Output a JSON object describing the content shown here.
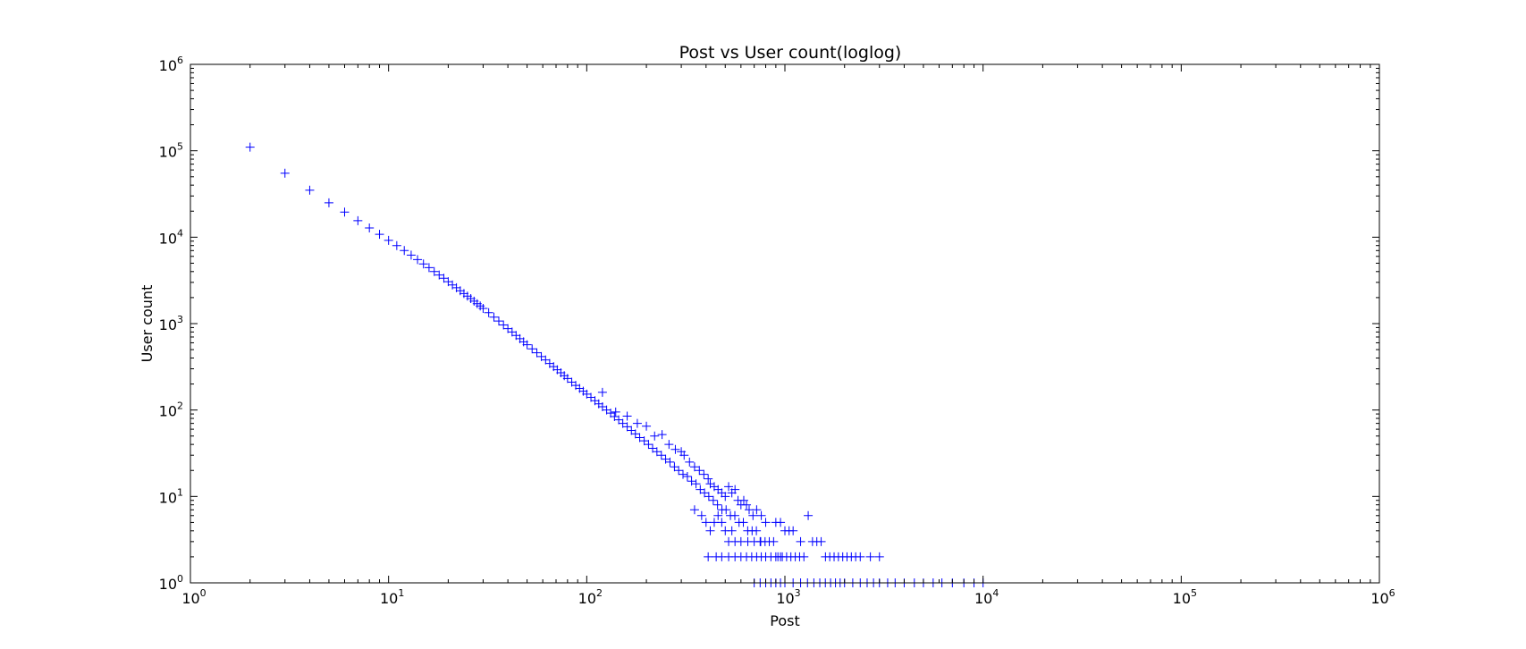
{
  "chart_data": {
    "type": "scatter",
    "title": "Post vs User count(loglog)",
    "xlabel": "Post",
    "ylabel": "User count",
    "xscale": "log",
    "yscale": "log",
    "xlim": [
      1,
      1000000
    ],
    "ylim": [
      1,
      1000000
    ],
    "grid": false,
    "marker": "+",
    "color": "#0000ff",
    "x_ticks": [
      {
        "base": "10",
        "exp": "0"
      },
      {
        "base": "10",
        "exp": "1"
      },
      {
        "base": "10",
        "exp": "2"
      },
      {
        "base": "10",
        "exp": "3"
      },
      {
        "base": "10",
        "exp": "4"
      },
      {
        "base": "10",
        "exp": "5"
      },
      {
        "base": "10",
        "exp": "6"
      }
    ],
    "y_ticks": [
      {
        "base": "10",
        "exp": "0"
      },
      {
        "base": "10",
        "exp": "1"
      },
      {
        "base": "10",
        "exp": "2"
      },
      {
        "base": "10",
        "exp": "3"
      },
      {
        "base": "10",
        "exp": "4"
      },
      {
        "base": "10",
        "exp": "5"
      },
      {
        "base": "10",
        "exp": "6"
      }
    ],
    "series": [
      {
        "points": [
          [
            2,
            110000
          ],
          [
            3,
            55000
          ],
          [
            4,
            35000
          ],
          [
            5,
            25000
          ],
          [
            6,
            19500
          ],
          [
            7,
            15500
          ],
          [
            8,
            12800
          ],
          [
            9,
            10800
          ],
          [
            10,
            9200
          ],
          [
            11,
            8000
          ],
          [
            12,
            7000
          ],
          [
            13,
            6200
          ],
          [
            14,
            5500
          ],
          [
            15,
            4900
          ],
          [
            16,
            4450
          ],
          [
            17,
            4000
          ],
          [
            18,
            3650
          ],
          [
            19,
            3350
          ],
          [
            20,
            3050
          ],
          [
            21,
            2800
          ],
          [
            22,
            2600
          ],
          [
            23,
            2400
          ],
          [
            24,
            2230
          ],
          [
            25,
            2080
          ],
          [
            26,
            1950
          ],
          [
            27,
            1820
          ],
          [
            28,
            1700
          ],
          [
            29,
            1600
          ],
          [
            30,
            1500
          ],
          [
            32,
            1340
          ],
          [
            34,
            1190
          ],
          [
            36,
            1070
          ],
          [
            38,
            965
          ],
          [
            40,
            875
          ],
          [
            42,
            800
          ],
          [
            44,
            730
          ],
          [
            46,
            670
          ],
          [
            48,
            615
          ],
          [
            50,
            570
          ],
          [
            53,
            510
          ],
          [
            56,
            460
          ],
          [
            59,
            415
          ],
          [
            62,
            380
          ],
          [
            65,
            345
          ],
          [
            68,
            318
          ],
          [
            71,
            292
          ],
          [
            74,
            270
          ],
          [
            77,
            250
          ],
          [
            80,
            232
          ],
          [
            84,
            210
          ],
          [
            88,
            193
          ],
          [
            92,
            178
          ],
          [
            96,
            165
          ],
          [
            100,
            153
          ],
          [
            105,
            140
          ],
          [
            110,
            128
          ],
          [
            115,
            118
          ],
          [
            120,
            109
          ],
          [
            126,
            100
          ],
          [
            132,
            92
          ],
          [
            138,
            84
          ],
          [
            145,
            77
          ],
          [
            152,
            70
          ],
          [
            160,
            64
          ],
          [
            168,
            58
          ],
          [
            176,
            53
          ],
          [
            185,
            48
          ],
          [
            195,
            44
          ],
          [
            205,
            40
          ],
          [
            215,
            36
          ],
          [
            226,
            33
          ],
          [
            238,
            30
          ],
          [
            250,
            27
          ],
          [
            263,
            25
          ],
          [
            277,
            22
          ],
          [
            291,
            20
          ],
          [
            306,
            18
          ],
          [
            322,
            17
          ],
          [
            338,
            15
          ],
          [
            356,
            14
          ],
          [
            374,
            12
          ],
          [
            393,
            11
          ],
          [
            413,
            10
          ],
          [
            435,
            9
          ],
          [
            457,
            8
          ],
          [
            481,
            7
          ],
          [
            505,
            7
          ],
          [
            531,
            6
          ],
          [
            559,
            6
          ],
          [
            587,
            5
          ],
          [
            617,
            5
          ],
          [
            649,
            4
          ],
          [
            683,
            4
          ],
          [
            718,
            4
          ],
          [
            755,
            3
          ],
          [
            794,
            3
          ],
          [
            834,
            3
          ],
          [
            877,
            3
          ],
          [
            922,
            2
          ],
          [
            970,
            2
          ],
          [
            1020,
            2
          ],
          [
            1072,
            2
          ],
          [
            1128,
            2
          ],
          [
            1186,
            2
          ],
          [
            1247,
            2
          ],
          [
            1311,
            6
          ],
          [
            1378,
            3
          ],
          [
            1449,
            3
          ],
          [
            1524,
            3
          ],
          [
            1602,
            2
          ],
          [
            1684,
            2
          ],
          [
            1771,
            2
          ],
          [
            1862,
            2
          ],
          [
            1958,
            2
          ],
          [
            2058,
            2
          ],
          [
            2164,
            2
          ],
          [
            2276,
            2
          ],
          [
            2400,
            2
          ],
          [
            2700,
            2
          ],
          [
            3000,
            2
          ],
          [
            120,
            160
          ],
          [
            140,
            95
          ],
          [
            160,
            85
          ],
          [
            180,
            70
          ],
          [
            200,
            65
          ],
          [
            220,
            50
          ],
          [
            240,
            52
          ],
          [
            260,
            40
          ],
          [
            280,
            35
          ],
          [
            300,
            33
          ],
          [
            310,
            30
          ],
          [
            330,
            25
          ],
          [
            350,
            22
          ],
          [
            370,
            20
          ],
          [
            390,
            18
          ],
          [
            410,
            16
          ],
          [
            420,
            14
          ],
          [
            440,
            13
          ],
          [
            460,
            12
          ],
          [
            480,
            11
          ],
          [
            500,
            10
          ],
          [
            520,
            13
          ],
          [
            540,
            11
          ],
          [
            560,
            12
          ],
          [
            580,
            9
          ],
          [
            600,
            8
          ],
          [
            620,
            9
          ],
          [
            640,
            8
          ],
          [
            660,
            7
          ],
          [
            690,
            6
          ],
          [
            720,
            7
          ],
          [
            760,
            6
          ],
          [
            800,
            5
          ],
          [
            900,
            5
          ],
          [
            950,
            5
          ],
          [
            1000,
            4
          ],
          [
            1050,
            4
          ],
          [
            1100,
            4
          ],
          [
            1200,
            3
          ],
          [
            350,
            7
          ],
          [
            380,
            6
          ],
          [
            400,
            5
          ],
          [
            420,
            4
          ],
          [
            440,
            5
          ],
          [
            460,
            6
          ],
          [
            480,
            5
          ],
          [
            500,
            4
          ],
          [
            520,
            3
          ],
          [
            540,
            4
          ],
          [
            560,
            3
          ],
          [
            600,
            3
          ],
          [
            650,
            3
          ],
          [
            700,
            3
          ],
          [
            750,
            3
          ],
          [
            410,
            2
          ],
          [
            450,
            2
          ],
          [
            480,
            2
          ],
          [
            520,
            2
          ],
          [
            560,
            2
          ],
          [
            600,
            2
          ],
          [
            640,
            2
          ],
          [
            680,
            2
          ],
          [
            720,
            2
          ],
          [
            760,
            2
          ],
          [
            800,
            2
          ],
          [
            850,
            2
          ],
          [
            900,
            2
          ],
          [
            950,
            2
          ],
          [
            700,
            1
          ],
          [
            750,
            1
          ],
          [
            800,
            1
          ],
          [
            850,
            1
          ],
          [
            900,
            1
          ],
          [
            950,
            1
          ],
          [
            1000,
            1
          ],
          [
            1100,
            1
          ],
          [
            1200,
            1
          ],
          [
            1300,
            1
          ],
          [
            1400,
            1
          ],
          [
            1500,
            1
          ],
          [
            1600,
            1
          ],
          [
            1700,
            1
          ],
          [
            1800,
            1
          ],
          [
            1900,
            1
          ],
          [
            2000,
            1
          ],
          [
            2200,
            1
          ],
          [
            2400,
            1
          ],
          [
            2600,
            1
          ],
          [
            2800,
            1
          ],
          [
            3000,
            1
          ],
          [
            3300,
            1
          ],
          [
            3600,
            1
          ],
          [
            4000,
            1
          ],
          [
            4500,
            1
          ],
          [
            5000,
            1
          ],
          [
            5600,
            1
          ],
          [
            6200,
            1
          ],
          [
            7000,
            1
          ],
          [
            8000,
            1
          ],
          [
            9000,
            1
          ],
          [
            10000,
            1
          ]
        ]
      }
    ]
  }
}
